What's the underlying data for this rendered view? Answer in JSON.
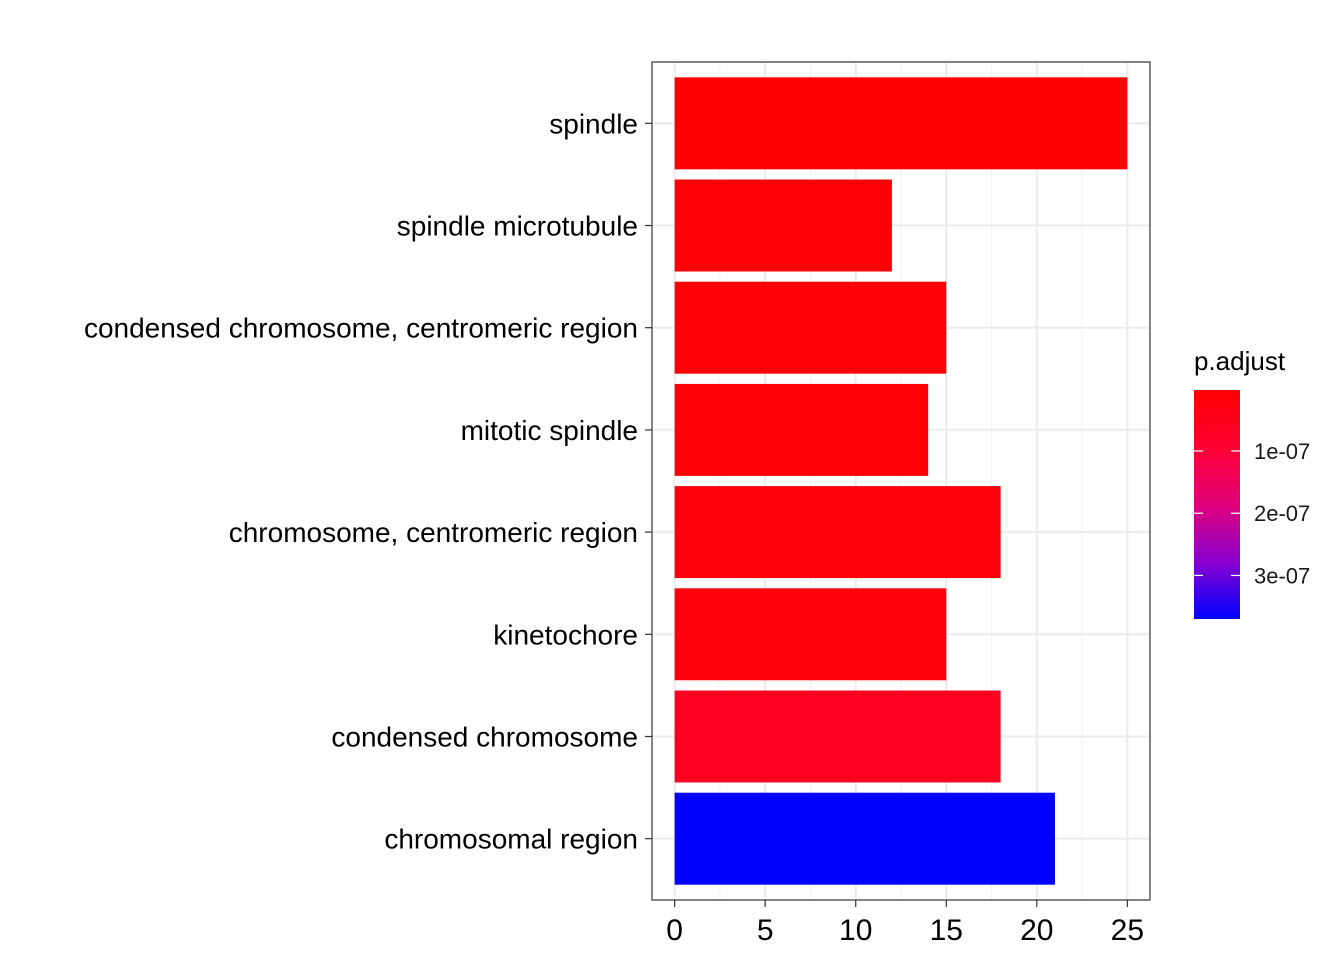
{
  "chart_data": {
    "type": "bar",
    "orientation": "horizontal",
    "categories": [
      "spindle",
      "spindle microtubule",
      "condensed chromosome, centromeric region",
      "mitotic spindle",
      "chromosome, centromeric region",
      "kinetochore",
      "condensed chromosome",
      "chromosomal region"
    ],
    "values": [
      25,
      12,
      15,
      14,
      18,
      15,
      18,
      21
    ],
    "p_adjust": [
      2e-09,
      4e-09,
      6e-09,
      1.3e-08,
      1.6e-08,
      1.8e-08,
      2.6e-08,
      3.7e-07
    ],
    "bar_colors": [
      "#FF0000",
      "#FF0004",
      "#FF0004",
      "#FF0007",
      "#FF000A",
      "#FF000B",
      "#FF0020",
      "#0000FF"
    ],
    "xticks": [
      "0",
      "5",
      "10",
      "15",
      "20",
      "25"
    ],
    "xtick_values": [
      0,
      5,
      10,
      15,
      20,
      25
    ],
    "xlim": [
      -1.25,
      26.25
    ],
    "xlabel": "",
    "ylabel": "",
    "title": "",
    "grid": true,
    "legend": {
      "title": "p.adjust",
      "position": "right",
      "labels": [
        "1e-07",
        "2e-07",
        "3e-07"
      ],
      "label_values": [
        1e-07,
        2e-07,
        3e-07
      ],
      "range": [
        2e-09,
        3.7e-07
      ],
      "low_color": "#FF0000",
      "high_color": "#0000FF"
    }
  }
}
